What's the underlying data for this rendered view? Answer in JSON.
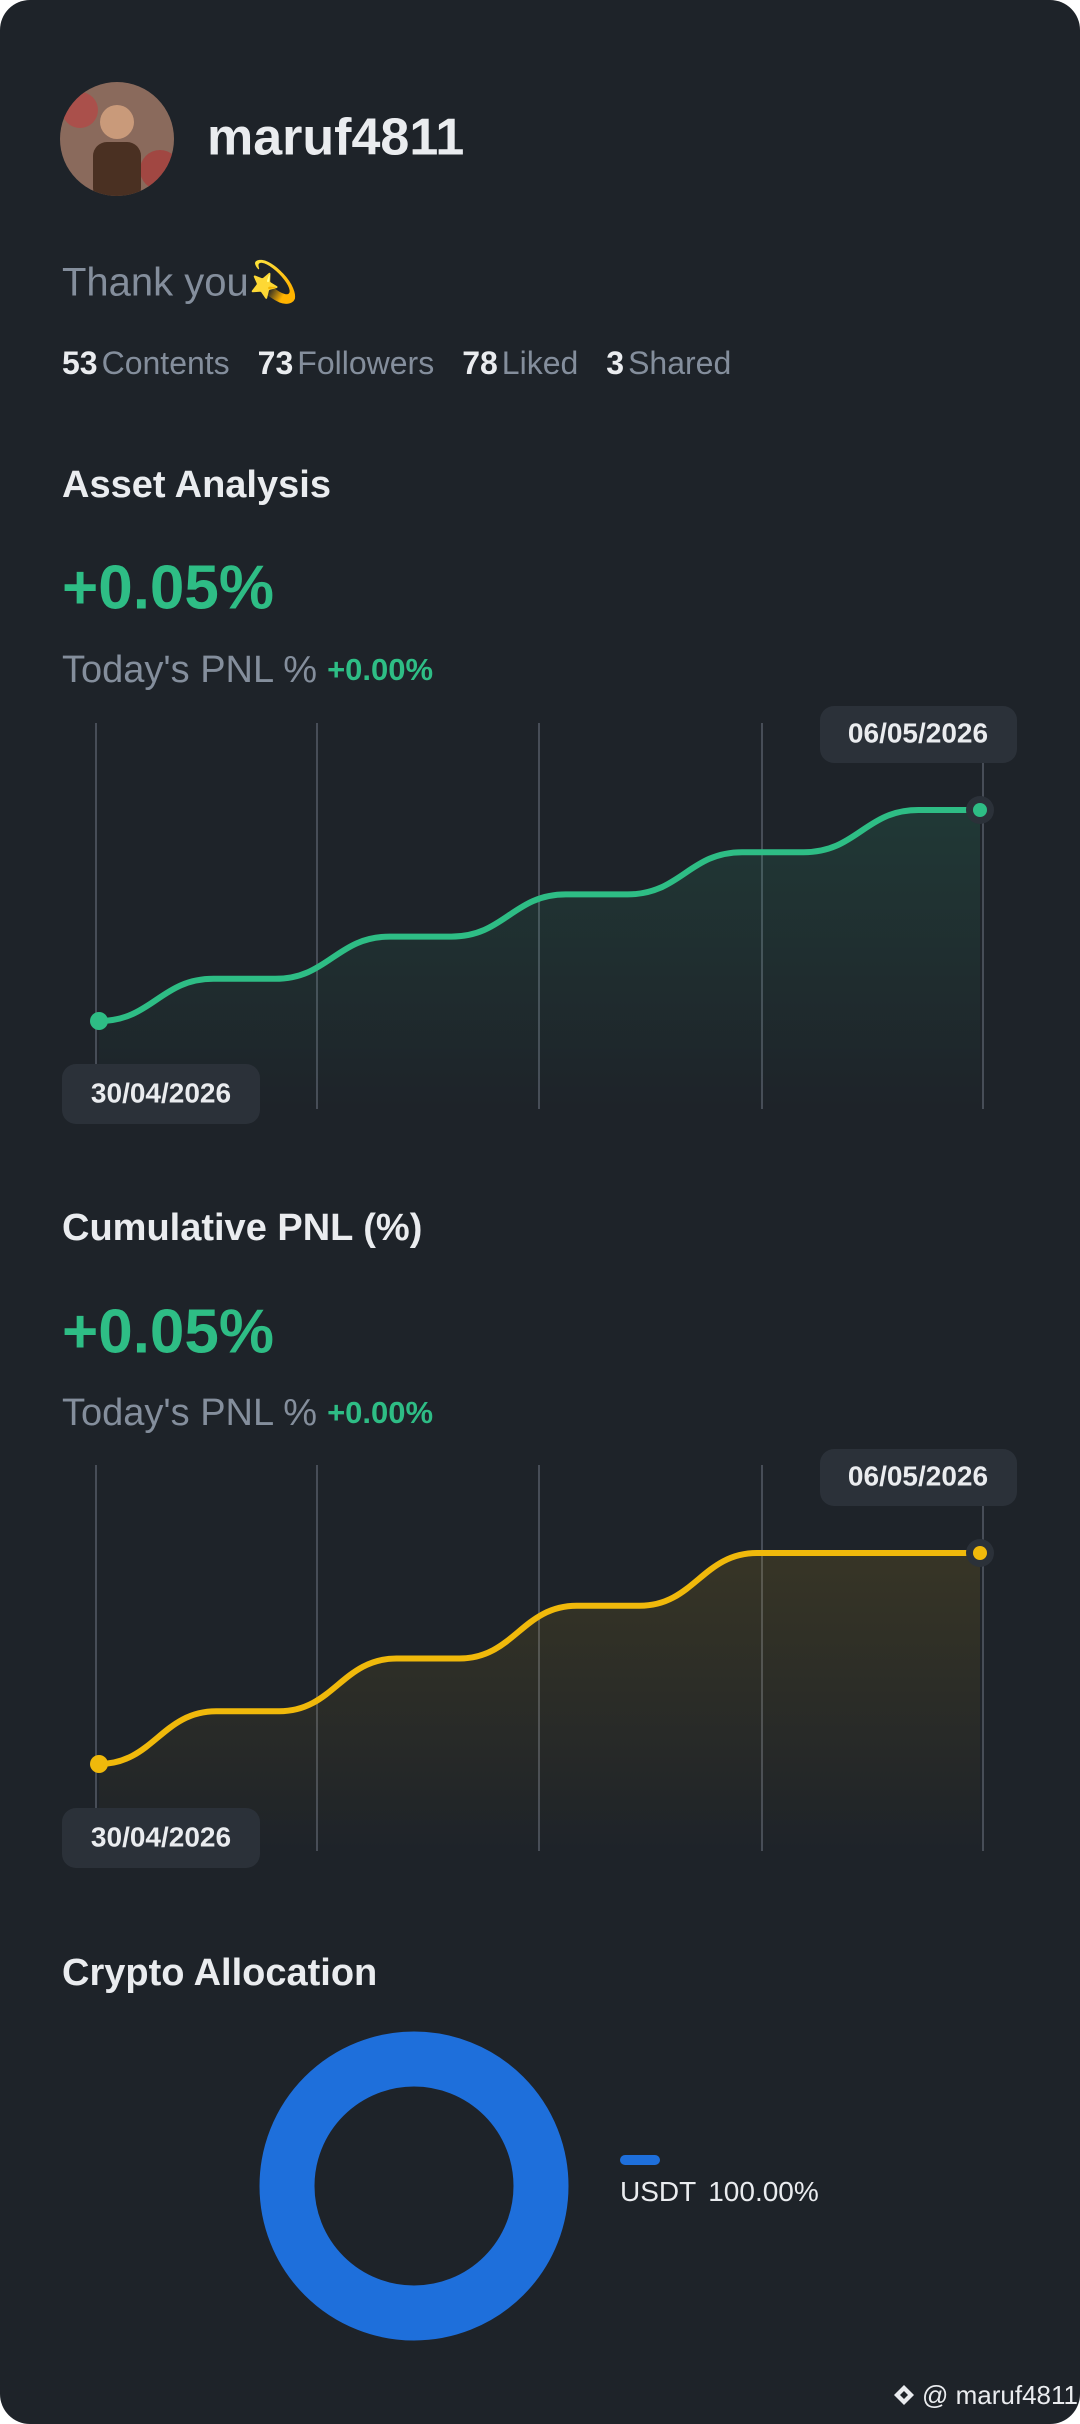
{
  "profile": {
    "username": "maruf4811",
    "bio": "Thank you💫",
    "stats": [
      {
        "value": 53,
        "label": "Contents"
      },
      {
        "value": 73,
        "label": "Followers"
      },
      {
        "value": 78,
        "label": "Liked"
      },
      {
        "value": 3,
        "label": "Shared"
      }
    ]
  },
  "asset_analysis": {
    "title": "Asset Analysis",
    "pnl": "+0.05%",
    "today_label": "Today's PNL %",
    "today_value": "+0.00%",
    "start_date": "30/04/2026",
    "end_date": "06/05/2026"
  },
  "cumulative_pnl": {
    "title": "Cumulative PNL (%)",
    "pnl": "+0.05%",
    "today_label": "Today's PNL %",
    "today_value": "+0.00%",
    "start_date": "30/04/2026",
    "end_date": "06/05/2026"
  },
  "chart_data": {
    "type": "pie",
    "title": "Crypto Allocation",
    "categories": [
      "USDT"
    ],
    "values": [
      100
    ],
    "value_labels": [
      "100.00%"
    ],
    "colors": [
      "#1e6fdb"
    ]
  },
  "watermark": "@ maruf4811"
}
